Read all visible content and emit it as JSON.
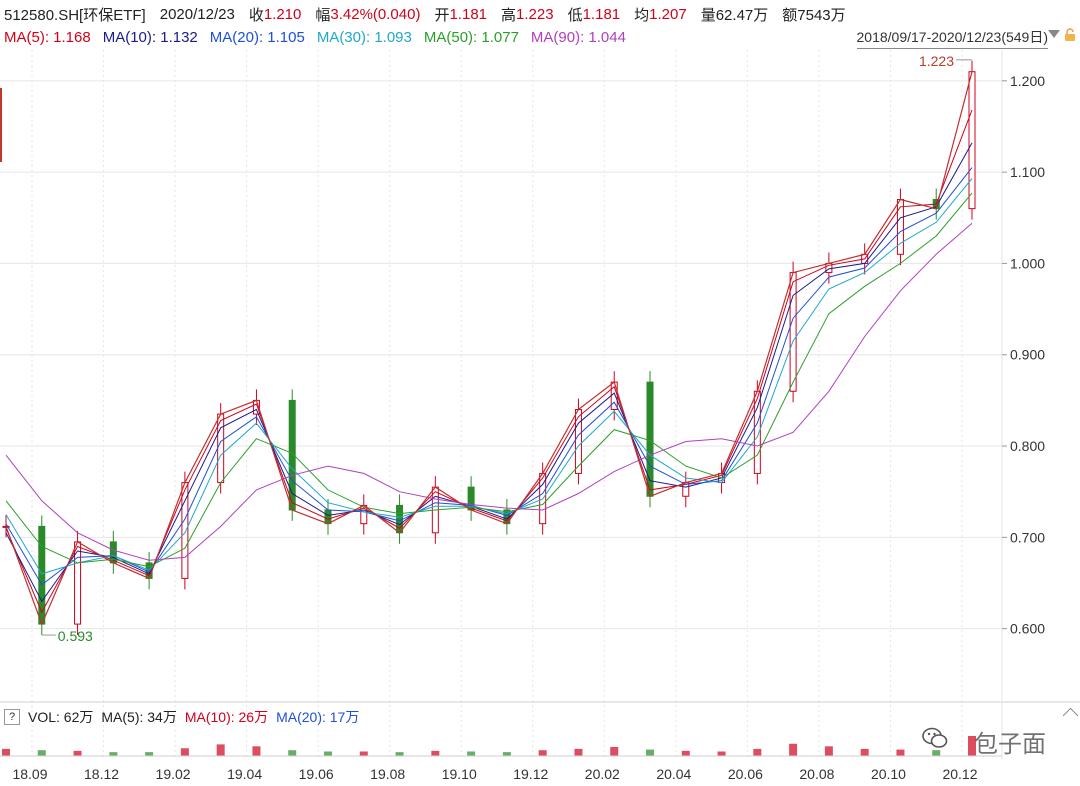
{
  "header": {
    "symbol": "512580.SH[环保ETF]",
    "date": "2020/12/23",
    "close_label": "收",
    "close": "1.210",
    "change_label": "幅",
    "change": "3.42%(0.040)",
    "open_label": "开",
    "open": "1.181",
    "high_label": "高",
    "high": "1.223",
    "low_label": "低",
    "low": "1.181",
    "avg_label": "均",
    "avg": "1.207",
    "volume_label": "量",
    "volume": "62.47万",
    "amount_label": "额",
    "amount": "7543万"
  },
  "ma_legend": [
    {
      "text": "MA(5): 1.168",
      "color": "#d0021b"
    },
    {
      "text": "MA(10): 1.132",
      "color": "#1a1a8c"
    },
    {
      "text": "MA(20): 1.105",
      "color": "#1e50d8"
    },
    {
      "text": "MA(30): 1.093",
      "color": "#20a8c8"
    },
    {
      "text": "MA(50): 1.077",
      "color": "#2aa02a"
    },
    {
      "text": "MA(90): 1.044",
      "color": "#b040c0"
    }
  ],
  "date_range": "2018/09/17-2020/12/23(549日)",
  "volume_panel": {
    "help": "?",
    "vol": "VOL: 62万",
    "ma5": "MA(5): 34万",
    "ma10": "MA(10): 26万",
    "ma20": "MA(20): 17万",
    "ma5_color": "#222222",
    "ma10_color": "#d0021b",
    "ma20_color": "#1e50d8"
  },
  "watermark": "包子面",
  "colors": {
    "up": "#d0021b",
    "down": "#2a8a2a",
    "grid": "#e6e6e6"
  },
  "chart_data": {
    "type": "line",
    "title": "",
    "x_ticks": [
      "18.09",
      "18.12",
      "19.02",
      "19.04",
      "19.06",
      "19.08",
      "19.10",
      "19.12",
      "20.02",
      "20.04",
      "20.06",
      "20.08",
      "20.10",
      "20.12"
    ],
    "y_ticks": [
      "1.200",
      "1.100",
      "1.000",
      "0.900",
      "0.800",
      "0.700",
      "0.600"
    ],
    "ylim": [
      0.535,
      1.225
    ],
    "annotations": [
      {
        "text": "1.223",
        "x": "20.12",
        "y": 1.223
      },
      {
        "text": "0.593",
        "x": "18.10",
        "y": 0.593
      }
    ],
    "series": [
      {
        "name": "Close",
        "color": "#c03030",
        "x": [
          "18.09",
          "18.10",
          "18.11",
          "18.12",
          "19.01",
          "19.02",
          "19.03",
          "19.04",
          "19.05",
          "19.06",
          "19.07",
          "19.08",
          "19.09",
          "19.10",
          "19.11",
          "19.12",
          "20.01",
          "20.02",
          "20.03",
          "20.04",
          "20.05",
          "20.06",
          "20.07",
          "20.08",
          "20.09",
          "20.10",
          "20.11",
          "20.12"
        ],
        "values": [
          0.712,
          0.605,
          0.695,
          0.672,
          0.655,
          0.76,
          0.835,
          0.85,
          0.73,
          0.715,
          0.735,
          0.705,
          0.755,
          0.73,
          0.715,
          0.77,
          0.84,
          0.87,
          0.745,
          0.76,
          0.77,
          0.86,
          0.99,
          1.0,
          1.01,
          1.07,
          1.06,
          1.21
        ]
      },
      {
        "name": "MA(5)",
        "color": "#d0021b",
        "x": [
          "18.09",
          "18.10",
          "18.11",
          "18.12",
          "19.01",
          "19.02",
          "19.03",
          "19.04",
          "19.05",
          "19.06",
          "19.07",
          "19.08",
          "19.09",
          "19.10",
          "19.11",
          "19.12",
          "20.01",
          "20.02",
          "20.03",
          "20.04",
          "20.05",
          "20.06",
          "20.07",
          "20.08",
          "20.09",
          "20.10",
          "20.11",
          "20.12"
        ],
        "values": [
          0.71,
          0.618,
          0.69,
          0.675,
          0.658,
          0.752,
          0.828,
          0.846,
          0.738,
          0.72,
          0.732,
          0.71,
          0.75,
          0.732,
          0.718,
          0.765,
          0.832,
          0.865,
          0.752,
          0.758,
          0.768,
          0.852,
          0.98,
          0.998,
          1.005,
          1.062,
          1.065,
          1.168
        ]
      },
      {
        "name": "MA(10)",
        "color": "#1a1a8c",
        "x": [
          "18.09",
          "18.10",
          "18.11",
          "18.12",
          "19.01",
          "19.02",
          "19.03",
          "19.04",
          "19.05",
          "19.06",
          "19.07",
          "19.08",
          "19.09",
          "19.10",
          "19.11",
          "19.12",
          "20.01",
          "20.02",
          "20.03",
          "20.04",
          "20.05",
          "20.06",
          "20.07",
          "20.08",
          "20.09",
          "20.10",
          "20.11",
          "20.12"
        ],
        "values": [
          0.705,
          0.63,
          0.685,
          0.678,
          0.66,
          0.74,
          0.82,
          0.84,
          0.748,
          0.724,
          0.73,
          0.714,
          0.745,
          0.734,
          0.72,
          0.758,
          0.825,
          0.858,
          0.762,
          0.755,
          0.765,
          0.842,
          0.965,
          0.994,
          1.0,
          1.05,
          1.062,
          1.132
        ]
      },
      {
        "name": "MA(20)",
        "color": "#1e50d8",
        "x": [
          "18.09",
          "18.10",
          "18.11",
          "18.12",
          "19.01",
          "19.02",
          "19.03",
          "19.04",
          "19.05",
          "19.06",
          "19.07",
          "19.08",
          "19.09",
          "19.10",
          "19.11",
          "19.12",
          "20.01",
          "20.02",
          "20.03",
          "20.04",
          "20.05",
          "20.06",
          "20.07",
          "20.08",
          "20.09",
          "20.10",
          "20.11",
          "20.12"
        ],
        "values": [
          0.715,
          0.648,
          0.678,
          0.68,
          0.662,
          0.72,
          0.805,
          0.832,
          0.762,
          0.73,
          0.728,
          0.718,
          0.738,
          0.735,
          0.724,
          0.748,
          0.812,
          0.848,
          0.778,
          0.758,
          0.762,
          0.825,
          0.94,
          0.985,
          0.995,
          1.035,
          1.055,
          1.105
        ]
      },
      {
        "name": "MA(30)",
        "color": "#20a8c8",
        "x": [
          "18.09",
          "18.10",
          "18.11",
          "18.12",
          "19.01",
          "19.02",
          "19.03",
          "19.04",
          "19.05",
          "19.06",
          "19.07",
          "19.08",
          "19.09",
          "19.10",
          "19.11",
          "19.12",
          "20.01",
          "20.02",
          "20.03",
          "20.04",
          "20.05",
          "20.06",
          "20.07",
          "20.08",
          "20.09",
          "20.10",
          "20.11",
          "20.12"
        ],
        "values": [
          0.725,
          0.66,
          0.672,
          0.68,
          0.664,
          0.705,
          0.79,
          0.825,
          0.775,
          0.738,
          0.728,
          0.722,
          0.734,
          0.734,
          0.726,
          0.742,
          0.8,
          0.838,
          0.79,
          0.765,
          0.76,
          0.81,
          0.915,
          0.972,
          0.99,
          1.022,
          1.045,
          1.093
        ]
      },
      {
        "name": "MA(50)",
        "color": "#2aa02a",
        "x": [
          "18.09",
          "18.10",
          "18.11",
          "18.12",
          "19.01",
          "19.02",
          "19.03",
          "19.04",
          "19.05",
          "19.06",
          "19.07",
          "19.08",
          "19.09",
          "19.10",
          "19.11",
          "19.12",
          "20.01",
          "20.02",
          "20.03",
          "20.04",
          "20.05",
          "20.06",
          "20.07",
          "20.08",
          "20.09",
          "20.10",
          "20.11",
          "20.12"
        ],
        "values": [
          0.74,
          0.69,
          0.672,
          0.676,
          0.668,
          0.688,
          0.76,
          0.808,
          0.792,
          0.752,
          0.733,
          0.726,
          0.73,
          0.733,
          0.728,
          0.736,
          0.778,
          0.818,
          0.806,
          0.778,
          0.765,
          0.79,
          0.87,
          0.945,
          0.975,
          1.0,
          1.03,
          1.077
        ]
      },
      {
        "name": "MA(90)",
        "color": "#b040c0",
        "x": [
          "18.09",
          "18.10",
          "18.11",
          "18.12",
          "19.01",
          "19.02",
          "19.03",
          "19.04",
          "19.05",
          "19.06",
          "19.07",
          "19.08",
          "19.09",
          "19.10",
          "19.11",
          "19.12",
          "20.01",
          "20.02",
          "20.03",
          "20.04",
          "20.05",
          "20.06",
          "20.07",
          "20.08",
          "20.09",
          "20.10",
          "20.11",
          "20.12"
        ],
        "values": [
          0.79,
          0.74,
          0.705,
          0.686,
          0.675,
          0.678,
          0.712,
          0.752,
          0.768,
          0.778,
          0.77,
          0.75,
          0.742,
          0.736,
          0.732,
          0.73,
          0.748,
          0.772,
          0.79,
          0.805,
          0.808,
          0.8,
          0.815,
          0.86,
          0.92,
          0.97,
          1.01,
          1.044
        ]
      }
    ],
    "volume": {
      "x": [
        "18.09",
        "18.10",
        "18.11",
        "18.12",
        "19.01",
        "19.02",
        "19.03",
        "19.04",
        "19.05",
        "19.06",
        "19.07",
        "19.08",
        "19.09",
        "19.10",
        "19.11",
        "19.12",
        "20.01",
        "20.02",
        "20.03",
        "20.04",
        "20.05",
        "20.06",
        "20.07",
        "20.08",
        "20.09",
        "20.10",
        "20.11",
        "20.12"
      ],
      "values": [
        22,
        18,
        16,
        12,
        12,
        24,
        36,
        30,
        18,
        14,
        14,
        12,
        16,
        14,
        12,
        18,
        22,
        28,
        20,
        16,
        14,
        22,
        38,
        30,
        22,
        20,
        18,
        62
      ]
    }
  }
}
